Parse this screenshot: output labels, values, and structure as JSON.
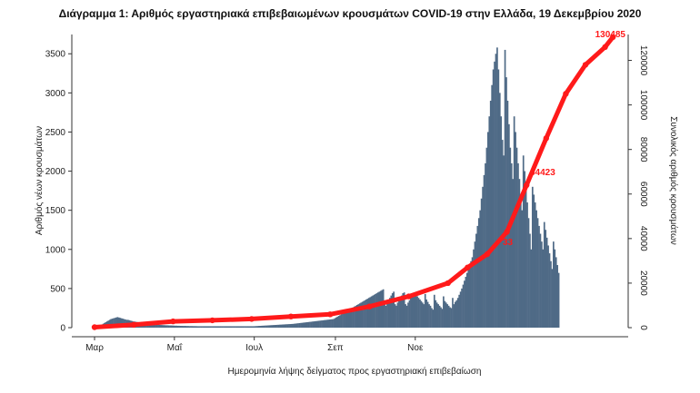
{
  "chart_data": {
    "type": "bar",
    "title": "Διάγραμμα 1: Αριθμός εργαστηριακά επιβεβαιωμένων κρουσμάτων COVID-19 στην Ελλάδα, 19 Δεκεμβρίου 2020",
    "xlabel": "Ημερομηνία λήψης δείγματος προς εργαστηριακή επιβεβαίωση",
    "ylabel": "Αριθμός νέων κρουσμάτων",
    "y2label": "Συνολικός αριθμός κρουσμάτων",
    "x_tick_labels": [
      "Μαρ",
      "Μαΐ",
      "Ιουλ",
      "Σεπ",
      "Νοε"
    ],
    "ylim": [
      0,
      3700
    ],
    "y_ticks": [
      0,
      500,
      1000,
      1500,
      2000,
      2500,
      3000,
      3500
    ],
    "y2lim": [
      0,
      130000
    ],
    "y2_ticks": [
      0,
      20000,
      40000,
      60000,
      80000,
      100000,
      120000
    ],
    "grid": false,
    "colors": {
      "bars": "#4f6a86",
      "cumulative": "#ff1a1a",
      "text": "#222222"
    },
    "series": [
      {
        "kind": "bar",
        "axis": "left",
        "monthly_values": [
          [
            15,
            20,
            25,
            30,
            35,
            40,
            50,
            60,
            70,
            80,
            90,
            100,
            110,
            115,
            120,
            125,
            130,
            135,
            130,
            125,
            120,
            115,
            110,
            105,
            100,
            100,
            95,
            90,
            85,
            80,
            78
          ],
          [
            75,
            72,
            70,
            68,
            65,
            62,
            60,
            58,
            55,
            52,
            50,
            48,
            46,
            44,
            42,
            40,
            38,
            36,
            35,
            34,
            33,
            32,
            31,
            30,
            30,
            29,
            28,
            28,
            27,
            26
          ],
          [
            25,
            25,
            24,
            24,
            23,
            23,
            22,
            22,
            22,
            21,
            21,
            20,
            20,
            20,
            19,
            19,
            19,
            18,
            18,
            18,
            18,
            18,
            18,
            18,
            18,
            18,
            18,
            18,
            18,
            18,
            18
          ],
          [
            18,
            18,
            18,
            18,
            18,
            18,
            18,
            18,
            18,
            18,
            18,
            18,
            18,
            18,
            18,
            18,
            18,
            18,
            18,
            18,
            18,
            18,
            18,
            18,
            18,
            18,
            18,
            18,
            18,
            18
          ],
          [
            19,
            20,
            21,
            22,
            23,
            24,
            25,
            26,
            27,
            28,
            29,
            30,
            31,
            32,
            33,
            34,
            35,
            36,
            37,
            38,
            39,
            40,
            41,
            42,
            43,
            44,
            45,
            46,
            47,
            48,
            50
          ],
          [
            52,
            54,
            56,
            58,
            60,
            62,
            64,
            66,
            68,
            70,
            72,
            74,
            76,
            78,
            80,
            82,
            84,
            86,
            88,
            90,
            92,
            94,
            96,
            98,
            100,
            102,
            104,
            106,
            108,
            110
          ],
          [
            120,
            130,
            140,
            150,
            160,
            170,
            180,
            190,
            200,
            210,
            220,
            230,
            240,
            250,
            260,
            270,
            280,
            290,
            300,
            310,
            320,
            330,
            340,
            350,
            360,
            370,
            380,
            390,
            400,
            410,
            420
          ],
          [
            430,
            440,
            450,
            460,
            470,
            480,
            490,
            300,
            280,
            320,
            350,
            380,
            410,
            440,
            460,
            300,
            280,
            320,
            350,
            380,
            410,
            440,
            450,
            300,
            280,
            320,
            350,
            380,
            400,
            420,
            440
          ],
          [
            420,
            400,
            380,
            360,
            340,
            320,
            300,
            430,
            360,
            330,
            300,
            280,
            250,
            230,
            420,
            350,
            320,
            300,
            280,
            260,
            240,
            400,
            340,
            320,
            300,
            280,
            260,
            250,
            380,
            300
          ],
          [
            330,
            350,
            380,
            420,
            460,
            500,
            550,
            600,
            650,
            700,
            750,
            800,
            850,
            900,
            1000,
            1100,
            1200,
            1300,
            1400,
            1500,
            1650,
            1800,
            1950,
            2100,
            2300,
            2500,
            2700,
            2900,
            3100,
            3300,
            3400
          ],
          [
            3500,
            3580,
            3300,
            3000,
            2700,
            2400,
            2200,
            3550,
            3200,
            2900,
            2600,
            2300,
            2100,
            1900,
            2700,
            2500,
            2300,
            2100,
            1900,
            1700,
            1500,
            2200,
            2000,
            1800,
            1600,
            1400,
            1200,
            1000,
            1800,
            1700
          ],
          [
            1600,
            1500,
            1400,
            1300,
            1200,
            1100,
            1000,
            1350,
            1250,
            1150,
            1050,
            950,
            850,
            750,
            1100,
            1000,
            900,
            800,
            700
          ]
        ]
      },
      {
        "kind": "line",
        "axis": "right",
        "points": [
          [
            0,
            200
          ],
          [
            30,
            1300
          ],
          [
            60,
            2800
          ],
          [
            90,
            3300
          ],
          [
            120,
            3900
          ],
          [
            150,
            5000
          ],
          [
            180,
            6000
          ],
          [
            210,
            9500
          ],
          [
            240,
            14000
          ],
          [
            270,
            20000
          ],
          [
            285,
            27000
          ],
          [
            300,
            33000
          ],
          [
            315,
            43000
          ],
          [
            330,
            64000
          ],
          [
            345,
            85000
          ],
          [
            360,
            105000
          ],
          [
            375,
            118000
          ],
          [
            390,
            126000
          ],
          [
            396,
            130485
          ]
        ]
      }
    ],
    "annotations": [
      "130485",
      "64423",
      "33"
    ]
  }
}
